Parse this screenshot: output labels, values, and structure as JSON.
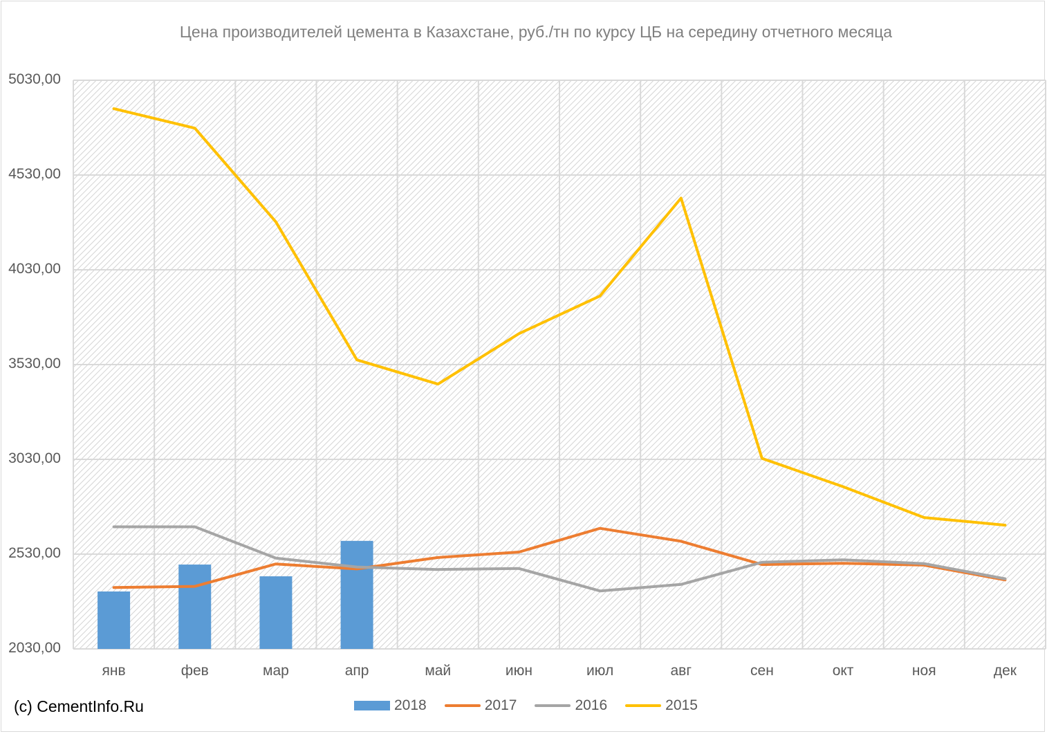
{
  "chart_data": {
    "type": "bar+line",
    "title": "Цена производителей цемента в Казахстане, руб./тн по курсу ЦБ на середину отчетного месяца",
    "categories": [
      "янв",
      "фев",
      "мар",
      "апр",
      "май",
      "июн",
      "июл",
      "авг",
      "сен",
      "окт",
      "ноя",
      "дек"
    ],
    "ylim": [
      2030,
      5030
    ],
    "yticks": [
      "5030,00",
      "4530,00",
      "4030,00",
      "3530,00",
      "3030,00",
      "2530,00",
      "2030,00"
    ],
    "ytick_values": [
      5030,
      4530,
      4030,
      3530,
      3030,
      2530,
      2030
    ],
    "grid": true,
    "legend_position": "bottom",
    "bar_series": {
      "name": "2018",
      "color": "#5b9bd5",
      "values": [
        2333,
        2475,
        2413,
        2600
      ]
    },
    "line_series": [
      {
        "name": "2017",
        "color": "#ed7d31",
        "values": [
          2354,
          2360,
          2478,
          2452,
          2512,
          2541,
          2666,
          2598,
          2475,
          2482,
          2472,
          2394
        ]
      },
      {
        "name": "2016",
        "color": "#a5a5a5",
        "values": [
          2674,
          2674,
          2509,
          2462,
          2449,
          2454,
          2336,
          2370,
          2487,
          2500,
          2480,
          2400
        ]
      },
      {
        "name": "2015",
        "color": "#ffc000",
        "values": [
          4880,
          4777,
          4283,
          3555,
          3427,
          3693,
          3892,
          4408,
          3035,
          2886,
          2723,
          2683
        ]
      }
    ]
  },
  "credit": "(c) CementInfo.Ru"
}
